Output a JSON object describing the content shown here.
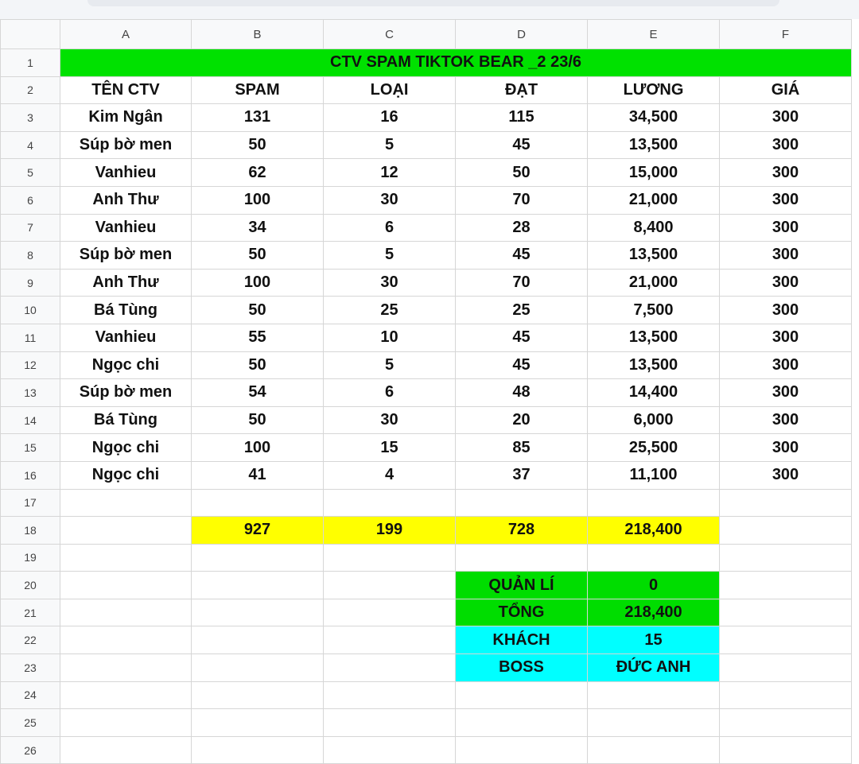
{
  "columns": [
    "A",
    "B",
    "C",
    "D",
    "E",
    "F"
  ],
  "title": "CTV SPAM TIKTOK BEAR _2 23/6",
  "headers": [
    "TÊN CTV",
    "SPAM",
    "LOẠI",
    "ĐẠT",
    "LƯƠNG",
    "GIÁ"
  ],
  "rows": [
    [
      "Kim Ngân",
      "131",
      "16",
      "115",
      "34,500",
      "300"
    ],
    [
      "Súp bờ men",
      "50",
      "5",
      "45",
      "13,500",
      "300"
    ],
    [
      "Vanhieu",
      "62",
      "12",
      "50",
      "15,000",
      "300"
    ],
    [
      "Anh Thư",
      "100",
      "30",
      "70",
      "21,000",
      "300"
    ],
    [
      "Vanhieu",
      "34",
      "6",
      "28",
      "8,400",
      "300"
    ],
    [
      "Súp bờ men",
      "50",
      "5",
      "45",
      "13,500",
      "300"
    ],
    [
      "Anh Thư",
      "100",
      "30",
      "70",
      "21,000",
      "300"
    ],
    [
      "Bá Tùng",
      "50",
      "25",
      "25",
      "7,500",
      "300"
    ],
    [
      "Vanhieu",
      "55",
      "10",
      "45",
      "13,500",
      "300"
    ],
    [
      "Ngọc chi",
      "50",
      "5",
      "45",
      "13,500",
      "300"
    ],
    [
      "Súp bờ men",
      "54",
      "6",
      "48",
      "14,400",
      "300"
    ],
    [
      "Bá Tùng",
      "50",
      "30",
      "20",
      "6,000",
      "300"
    ],
    [
      "Ngọc chi",
      "100",
      "15",
      "85",
      "25,500",
      "300"
    ],
    [
      "Ngọc chi",
      "41",
      "4",
      "37",
      "11,100",
      "300"
    ]
  ],
  "totals": [
    "927",
    "199",
    "728",
    "218,400"
  ],
  "summary": [
    {
      "label": "QUẢN LÍ",
      "value": "0"
    },
    {
      "label": "TỔNG",
      "value": "218,400"
    },
    {
      "label": "KHÁCH",
      "value": "15"
    },
    {
      "label": "BOSS",
      "value": "ĐỨC ANH"
    }
  ],
  "row_numbers": [
    "1",
    "2",
    "3",
    "4",
    "5",
    "6",
    "7",
    "8",
    "9",
    "10",
    "11",
    "12",
    "13",
    "14",
    "15",
    "16",
    "17",
    "18",
    "19",
    "20",
    "21",
    "22",
    "23",
    "24",
    "25",
    "26"
  ],
  "colors": {
    "title_bg": "#00e100",
    "totals_bg": "#ffff00",
    "summary_green": "#00dd00",
    "summary_cyan": "#00ffff"
  }
}
